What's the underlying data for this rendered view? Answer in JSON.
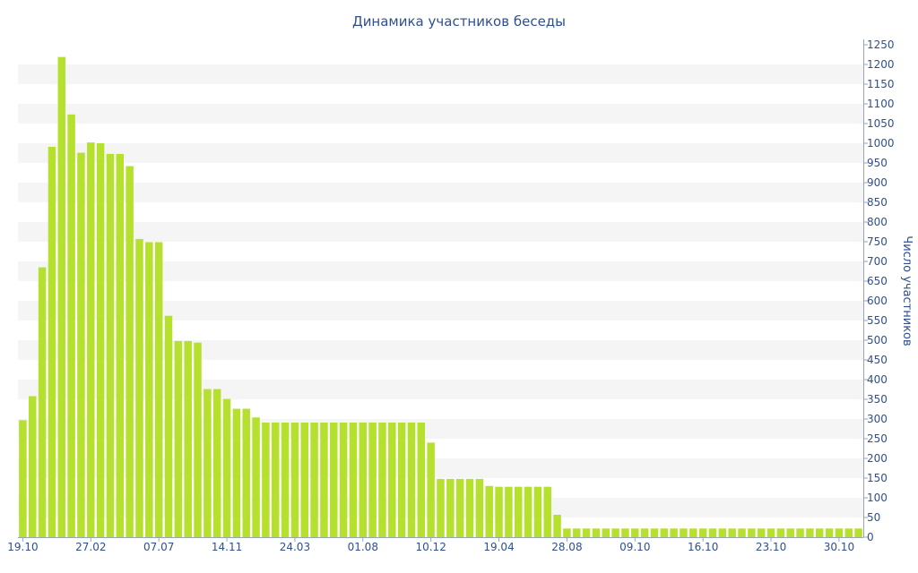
{
  "chart_data": {
    "type": "bar",
    "title": "Динамика участников беседы",
    "xlabel": "",
    "ylabel": "Число участников",
    "y_axis_side": "right",
    "ylim": [
      0,
      1250
    ],
    "ytick_step": 50,
    "grid": "alternating horizontal bands",
    "bar_color": "#b5e02d",
    "band_color": "#f5f5f5",
    "text_color": "#2f4f8f",
    "x_tick_labels": [
      "19.10",
      "27.02",
      "07.07",
      "14.11",
      "24.03",
      "01.08",
      "10.12",
      "19.04",
      "28.08",
      "09.10",
      "16.10",
      "23.10",
      "30.10"
    ],
    "x_tick_label_bar_index": [
      0,
      7,
      14,
      21,
      28,
      35,
      42,
      49,
      56,
      63,
      70,
      77,
      84
    ],
    "values": [
      297,
      358,
      685,
      991,
      1219,
      1073,
      976,
      1002,
      1000,
      973,
      973,
      942,
      757,
      749,
      749,
      562,
      498,
      498,
      494,
      376,
      376,
      351,
      326,
      326,
      304,
      291,
      291,
      291,
      291,
      291,
      291,
      291,
      291,
      291,
      291,
      291,
      291,
      291,
      291,
      291,
      291,
      291,
      240,
      148,
      148,
      148,
      148,
      148,
      130,
      128,
      128,
      128,
      128,
      128,
      128,
      57,
      22,
      22,
      22,
      22,
      22,
      22,
      22,
      22,
      22,
      22,
      22,
      22,
      22,
      22,
      22,
      22,
      22,
      22,
      22,
      22,
      22,
      22,
      22,
      22,
      22,
      22,
      22,
      22,
      22,
      22,
      22
    ]
  }
}
